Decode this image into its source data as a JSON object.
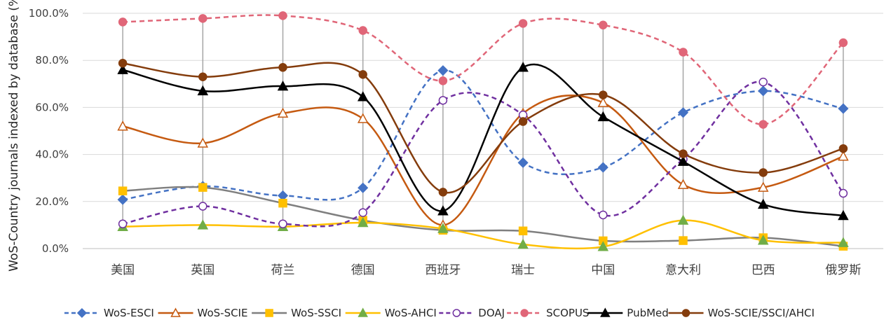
{
  "chart_data": {
    "type": "line",
    "ylabel": "WoS-Country journals indexed by database (%)",
    "xlabel": "",
    "ylim": [
      0,
      100
    ],
    "yticks": [
      "0.0%",
      "20.0%",
      "40.0%",
      "60.0%",
      "80.0%",
      "100.0%"
    ],
    "categories": [
      "美国",
      "英国",
      "荷兰",
      "德国",
      "西班牙",
      "瑞士",
      "中国",
      "意大利",
      "巴西",
      "俄罗斯"
    ],
    "legend_position": "bottom",
    "grid": "horizontal",
    "series": [
      {
        "name": "WoS-ESCI",
        "color": "#4472C4",
        "dash": true,
        "marker": "diamond",
        "filled": true,
        "values": [
          20.8,
          26.5,
          22.5,
          25.8,
          75.7,
          36.5,
          34.5,
          57.8,
          67.0,
          59.5
        ]
      },
      {
        "name": "WoS-SCIE",
        "color": "#C55A11",
        "dash": false,
        "marker": "triangle",
        "filled": false,
        "values": [
          52.0,
          44.8,
          57.5,
          55.2,
          10.0,
          57.5,
          62.0,
          27.2,
          26.0,
          39.2
        ]
      },
      {
        "name": "WoS-SSCI",
        "color": "#7F7F7F",
        "dash": false,
        "marker": "square",
        "filled": true,
        "marker_color": "#FFC000",
        "values": [
          24.5,
          26.0,
          19.3,
          12.0,
          7.8,
          7.5,
          3.3,
          3.4,
          4.6,
          1.0
        ]
      },
      {
        "name": "WoS-AHCI",
        "color": "#FFC000",
        "dash": false,
        "marker": "triangle",
        "filled": true,
        "marker_color": "#70AD47",
        "values": [
          9.3,
          10.0,
          9.3,
          11.0,
          8.5,
          1.8,
          0.8,
          12.0,
          3.5,
          2.5
        ]
      },
      {
        "name": "DOAJ",
        "color": "#7030A0",
        "dash": true,
        "marker": "circle",
        "filled": false,
        "values": [
          10.5,
          18.0,
          10.5,
          15.3,
          63.0,
          56.8,
          14.3,
          38.0,
          70.8,
          23.5
        ]
      },
      {
        "name": "SCOPUS",
        "color": "#E06678",
        "dash": true,
        "marker": "circle",
        "filled": true,
        "values": [
          96.3,
          97.8,
          99.0,
          92.7,
          71.3,
          95.7,
          95.0,
          83.5,
          52.8,
          87.5
        ]
      },
      {
        "name": "PubMed",
        "color": "#000000",
        "dash": false,
        "marker": "triangle",
        "filled": true,
        "values": [
          76.0,
          67.0,
          69.0,
          64.5,
          16.0,
          77.0,
          56.0,
          37.0,
          18.8,
          14.0
        ]
      },
      {
        "name": "WoS-SCIE/SSCI/AHCI",
        "color": "#843C0C",
        "dash": false,
        "marker": "circle",
        "filled": true,
        "values": [
          78.8,
          73.0,
          77.0,
          74.0,
          24.0,
          54.0,
          65.3,
          40.3,
          32.3,
          42.5
        ]
      }
    ]
  }
}
